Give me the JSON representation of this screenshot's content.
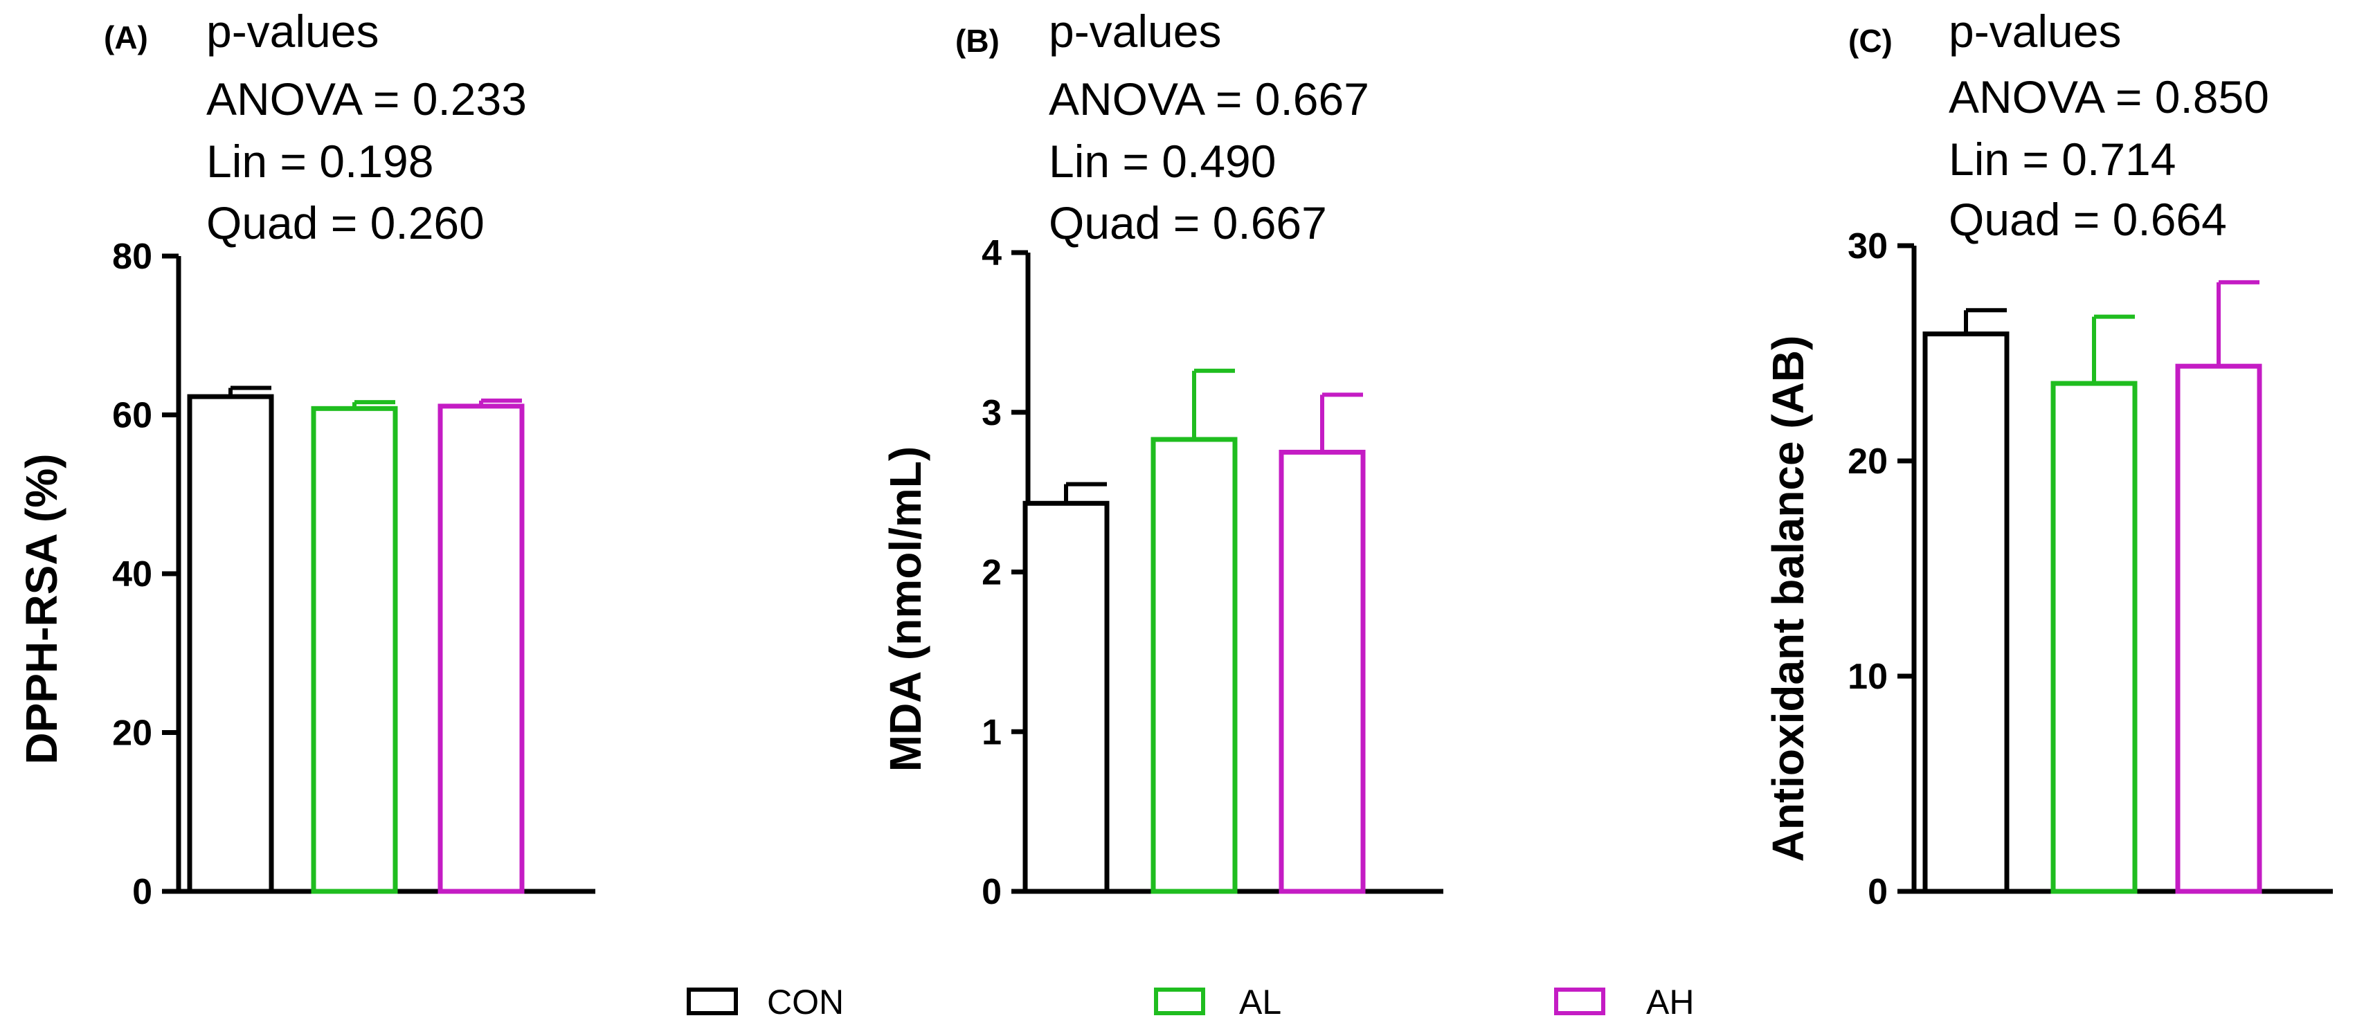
{
  "groups": [
    "CON",
    "AL",
    "AH"
  ],
  "colors": {
    "CON": "#000000",
    "AL": "#1fbd1f",
    "AH": "#c41cc4"
  },
  "chart_data": [
    {
      "type": "bar",
      "panel_label": "(A)",
      "stats": [
        "p-values",
        "ANOVA = 0.233",
        "Lin = 0.198",
        "Quad = 0.260"
      ],
      "ylabel": "DPPH-RSA (%)",
      "ylim": [
        0,
        80
      ],
      "yticks": [
        0,
        20,
        40,
        60,
        80
      ],
      "ytick_labels": [
        "0",
        "20",
        "40",
        "60",
        "80"
      ],
      "categories": [
        "CON",
        "AL",
        "AH"
      ],
      "values": [
        62.3,
        60.8,
        61.1
      ],
      "errors": [
        1.1,
        0.8,
        0.7
      ]
    },
    {
      "type": "bar",
      "panel_label": "(B)",
      "stats": [
        "p-values",
        "ANOVA = 0.667",
        "Lin = 0.490",
        "Quad = 0.667"
      ],
      "ylabel": "MDA (nmol/mL)",
      "ylim": [
        0,
        4
      ],
      "yticks": [
        0,
        1,
        2,
        3,
        4
      ],
      "ytick_labels": [
        "0",
        "1",
        "2",
        "3",
        "4"
      ],
      "categories": [
        "CON",
        "AL",
        "AH"
      ],
      "values": [
        2.43,
        2.83,
        2.75
      ],
      "errors": [
        0.12,
        0.43,
        0.36
      ]
    },
    {
      "type": "bar",
      "panel_label": "(C)",
      "stats": [
        "p-values",
        "ANOVA = 0.850",
        "Lin = 0.714",
        "Quad = 0.664"
      ],
      "ylabel": "Antioxidant balance (AB)",
      "ylim": [
        0,
        30
      ],
      "yticks": [
        0,
        10,
        20,
        30
      ],
      "ytick_labels": [
        "0",
        "10",
        "20",
        "30"
      ],
      "categories": [
        "CON",
        "AL",
        "AH"
      ],
      "values": [
        25.9,
        23.6,
        24.4
      ],
      "errors": [
        1.1,
        3.1,
        3.9
      ]
    }
  ],
  "legend": [
    {
      "label": "CON",
      "key": "CON"
    },
    {
      "label": "AL",
      "key": "AL"
    },
    {
      "label": "AH",
      "key": "AH"
    }
  ]
}
